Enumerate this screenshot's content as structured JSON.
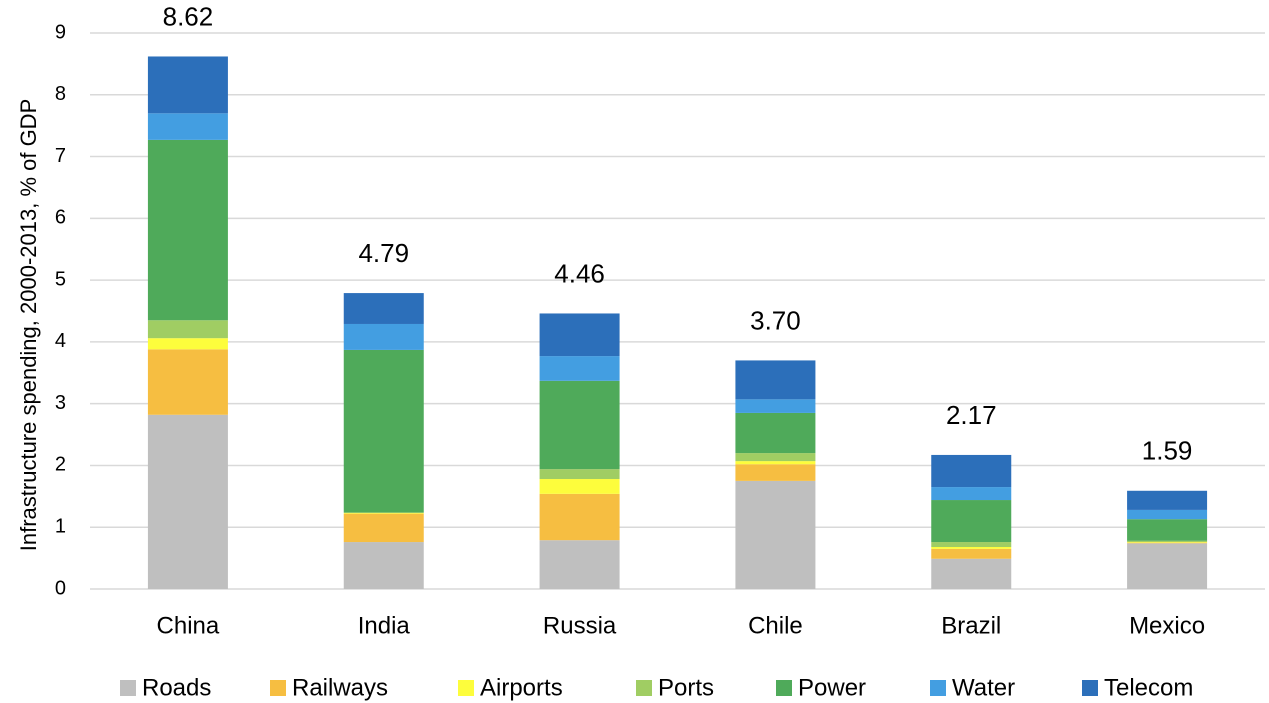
{
  "chart_data": {
    "type": "stacked_bar",
    "y_label": "Infrastructure spending, 2000-2013, % of GDP",
    "categories": [
      "China",
      "India",
      "Russia",
      "Chile",
      "Brazil",
      "Mexico"
    ],
    "series": [
      {
        "name": "Roads",
        "color": "#bfbfbf",
        "values": [
          2.82,
          0.76,
          0.79,
          1.75,
          0.49,
          0.74
        ]
      },
      {
        "name": "Railways",
        "color": "#f6be41",
        "values": [
          1.06,
          0.46,
          0.75,
          0.27,
          0.16,
          0.01
        ]
      },
      {
        "name": "Airports",
        "color": "#fdfd3c",
        "values": [
          0.18,
          0.01,
          0.24,
          0.05,
          0.03,
          0.01
        ]
      },
      {
        "name": "Ports",
        "color": "#a0cd63",
        "values": [
          0.29,
          0.01,
          0.16,
          0.13,
          0.08,
          0.02
        ]
      },
      {
        "name": "Power",
        "color": "#4faa5a",
        "values": [
          2.92,
          2.63,
          1.43,
          0.65,
          0.68,
          0.35
        ]
      },
      {
        "name": "Water",
        "color": "#439ee1",
        "values": [
          0.43,
          0.42,
          0.4,
          0.22,
          0.21,
          0.15
        ]
      },
      {
        "name": "Telecom",
        "color": "#2c6fba",
        "values": [
          0.92,
          0.5,
          0.69,
          0.63,
          0.52,
          0.31
        ]
      }
    ],
    "totals": [
      8.62,
      4.79,
      4.46,
      3.7,
      2.17,
      1.59
    ],
    "total_labels": [
      "8.62",
      "4.79",
      "4.46",
      "3.70",
      "2.17",
      "1.59"
    ],
    "ylim": [
      0,
      9
    ],
    "yticks": [
      0,
      1,
      2,
      3,
      4,
      5,
      6,
      7,
      8,
      9
    ],
    "grid": true,
    "legend": "bottom"
  }
}
